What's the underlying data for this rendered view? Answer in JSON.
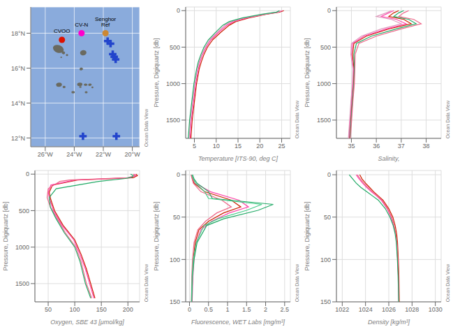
{
  "chart_data": [
    {
      "type": "map",
      "xlim": [
        -27,
        -19.5
      ],
      "ylim": [
        11.5,
        19.5
      ],
      "xticks": [
        {
          "value": -26,
          "label": "26°W"
        },
        {
          "value": -24,
          "label": "24°W"
        },
        {
          "value": -22,
          "label": "22°W"
        },
        {
          "value": -20,
          "label": "20°W"
        }
      ],
      "yticks": [
        {
          "value": 12,
          "label": "12°N"
        },
        {
          "value": 14,
          "label": "14°N"
        },
        {
          "value": 16,
          "label": "16°N"
        },
        {
          "value": 18,
          "label": "18°N"
        }
      ],
      "grid": true,
      "color": "#8aabdc",
      "annotations": [
        "Ocean Data View"
      ],
      "series": [
        {
          "type": "ellipse",
          "color": "#6a6a60",
          "x": [
            -25.1,
            -24.75,
            -24.5,
            -24.9,
            -25.05,
            -24.7,
            -23.62,
            -23.58,
            -23.22,
            -23.52,
            -23.38,
            -22.92,
            -22.75,
            -23.18,
            -24.08
          ],
          "y": [
            17.1,
            16.88,
            16.75,
            16.62,
            15.05,
            14.92,
            15.07,
            14.92,
            15.05,
            15.95,
            16.88,
            15.05,
            14.9,
            14.62,
            14.62
          ],
          "rx": [
            0.38,
            0.12,
            0.08,
            0.06,
            0.2,
            0.1,
            0.18,
            0.08,
            0.12,
            0.12,
            0.22,
            0.12,
            0.07,
            0.1,
            0.12
          ],
          "ry": [
            0.22,
            0.08,
            0.06,
            0.04,
            0.12,
            0.07,
            0.1,
            0.05,
            0.07,
            0.08,
            0.15,
            0.07,
            0.05,
            0.06,
            0.07
          ],
          "angle": [
            -20,
            -20,
            0,
            0,
            10,
            0,
            5,
            0,
            0,
            10,
            5,
            5,
            0,
            0,
            0
          ]
        },
        {
          "type": "scatter",
          "color": "#2244cc",
          "marker": "cross",
          "x": [
            -21.7,
            -21.5,
            -21.35,
            -21.25,
            -21.15,
            -23.4,
            -21.1
          ],
          "y": [
            17.55,
            17.4,
            16.8,
            16.65,
            16.5,
            12.1,
            12.1
          ]
        },
        {
          "type": "scatter",
          "name": "CVOO",
          "color": "#dd1100",
          "marker": "circle",
          "x": [
            -24.85
          ],
          "y": [
            17.62
          ]
        },
        {
          "type": "scatter",
          "name": "CV-N",
          "color": "#ff00cc",
          "marker": "circle",
          "x": [
            -23.5
          ],
          "y": [
            18.0
          ]
        },
        {
          "type": "scatter",
          "name": "Senghor Ref",
          "color": "#cc8833",
          "marker": "circle",
          "x": [
            -21.85
          ],
          "y": [
            18.0
          ]
        }
      ]
    },
    {
      "type": "line",
      "xlabel": "Temperature [ITS-90, deg C]",
      "ylabel": "Pressure, Digiquartz [db]",
      "xlim": [
        3,
        27
      ],
      "ylim": [
        1750,
        -50
      ],
      "xticks": [
        5,
        10,
        15,
        20,
        25
      ],
      "yticks": [
        0,
        500,
        1000,
        1500
      ],
      "grid": true,
      "annotations": [
        "Ocean Data View"
      ],
      "series": [
        {
          "color": "#cc2200",
          "y": [
            0,
            20,
            50,
            100,
            150,
            200,
            300,
            400,
            500,
            600,
            700,
            800,
            1000,
            1250,
            1500,
            1750
          ],
          "x": [
            25.5,
            24.5,
            21.5,
            17.5,
            14.5,
            13.0,
            11.0,
            9.2,
            8.0,
            7.2,
            6.6,
            6.1,
            5.5,
            5.0,
            4.5,
            4.2
          ]
        },
        {
          "color": "#ff44aa",
          "y": [
            0,
            20,
            50,
            100,
            150,
            200,
            300,
            400,
            500,
            600,
            700,
            800,
            1000,
            1250,
            1500,
            1750
          ],
          "x": [
            25.2,
            24.2,
            21.2,
            17.0,
            14.0,
            12.5,
            10.5,
            8.8,
            7.7,
            6.9,
            6.3,
            5.9,
            5.3,
            4.8,
            4.3,
            4.0
          ]
        },
        {
          "color": "#dd99bb",
          "y": [
            0,
            20,
            50,
            100,
            150,
            200,
            300,
            400,
            500,
            600,
            700,
            800,
            1000,
            1250,
            1500,
            1750
          ],
          "x": [
            25.0,
            24.0,
            21.0,
            16.5,
            13.5,
            12.0,
            10.2,
            8.5,
            7.5,
            6.7,
            6.1,
            5.7,
            5.1,
            4.6,
            4.1,
            3.8
          ]
        },
        {
          "color": "#22aa66",
          "y": [
            0,
            20,
            50,
            100,
            150,
            200,
            300,
            400,
            500,
            600,
            700,
            800,
            1000,
            1250,
            1500,
            1750
          ],
          "x": [
            24.5,
            23.8,
            20.5,
            16.0,
            13.0,
            11.5,
            9.8,
            8.2,
            7.2,
            6.5,
            5.9,
            5.5,
            4.9,
            4.4,
            3.9,
            3.6
          ]
        }
      ]
    },
    {
      "type": "line",
      "xlabel": "Salinity,",
      "ylabel": "Pressure, Digiquartz [db]",
      "xlim": [
        34.4,
        38.6
      ],
      "ylim": [
        1750,
        -50
      ],
      "xticks": [
        35,
        36,
        37,
        38
      ],
      "yticks": [
        0,
        500,
        1000,
        1500
      ],
      "grid": true,
      "annotations": [
        "Ocean Data View"
      ],
      "series": [
        {
          "color": "#cc2200",
          "y": [
            0,
            30,
            80,
            120,
            180,
            250,
            350,
            450,
            600,
            800,
            1000,
            1250,
            1500,
            1750
          ],
          "x": [
            36.9,
            36.7,
            36.5,
            37.1,
            37.4,
            36.5,
            35.6,
            35.1,
            35.05,
            35.1,
            35.08,
            35.02,
            34.97,
            34.92
          ]
        },
        {
          "color": "#ff44aa",
          "y": [
            0,
            30,
            80,
            120,
            180,
            250,
            350,
            450,
            600,
            800,
            1000,
            1250,
            1500,
            1750
          ],
          "x": [
            36.7,
            36.5,
            36.2,
            36.8,
            37.2,
            36.4,
            35.5,
            35.05,
            35.0,
            35.08,
            35.06,
            35.0,
            34.95,
            34.9
          ]
        },
        {
          "color": "#dd99bb",
          "y": [
            0,
            30,
            80,
            120,
            180,
            250,
            350,
            450,
            600,
            800,
            1000,
            1250,
            1500,
            1750
          ],
          "x": [
            36.6,
            36.4,
            36.0,
            36.6,
            37.0,
            36.2,
            35.4,
            35.0,
            34.98,
            35.06,
            35.04,
            34.98,
            34.93,
            34.88
          ]
        },
        {
          "color": "#22aa66",
          "y": [
            0,
            30,
            80,
            120,
            180,
            250,
            350,
            450,
            600,
            800,
            1000,
            1250,
            1500,
            1750
          ],
          "x": [
            37.1,
            36.9,
            36.7,
            37.3,
            37.6,
            36.8,
            35.8,
            35.2,
            35.1,
            35.12,
            35.1,
            35.04,
            34.99,
            34.94
          ]
        },
        {
          "color": "#ee6688",
          "y": [
            0,
            30,
            80,
            120,
            180,
            250,
            350,
            450,
            600,
            800,
            1000,
            1250,
            1500,
            1750
          ],
          "x": [
            37.3,
            37.1,
            36.9,
            37.5,
            37.8,
            37.0,
            36.0,
            35.3,
            35.15,
            35.14,
            35.12,
            35.06,
            35.01,
            34.96
          ]
        }
      ]
    },
    {
      "type": "line",
      "xlabel": "Oxygen, SBE 43 [μmol/kg]",
      "ylabel": "Pressure, Digiquartz [db]",
      "xlim": [
        25,
        222
      ],
      "ylim": [
        1750,
        -50
      ],
      "xticks": [
        50,
        100,
        150,
        200
      ],
      "yticks": [
        0,
        500,
        1000,
        1500
      ],
      "grid": true,
      "annotations": [
        "Ocean Data View"
      ],
      "series": [
        {
          "color": "#cc2200",
          "y": [
            0,
            20,
            50,
            80,
            150,
            250,
            350,
            500,
            700,
            900,
            1100,
            1300,
            1500,
            1700
          ],
          "x": [
            215,
            218,
            210,
            105,
            58,
            52,
            55,
            62,
            78,
            100,
            112,
            122,
            130,
            138
          ]
        },
        {
          "color": "#ff44aa",
          "y": [
            0,
            20,
            50,
            80,
            150,
            250,
            350,
            500,
            700,
            900,
            1100,
            1300,
            1500,
            1700
          ],
          "x": [
            212,
            215,
            205,
            100,
            55,
            50,
            53,
            60,
            76,
            98,
            110,
            120,
            128,
            136
          ]
        },
        {
          "color": "#ee6688",
          "y": [
            0,
            20,
            50,
            80,
            100,
            200,
            320,
            450,
            600,
            800,
            1000,
            1200,
            1500,
            1700
          ],
          "x": [
            210,
            213,
            200,
            90,
            72,
            50,
            48,
            54,
            66,
            82,
            102,
            112,
            122,
            132
          ]
        },
        {
          "color": "#22aa66",
          "y": [
            0,
            20,
            40,
            60,
            100,
            200,
            320,
            450,
            600,
            800,
            1000,
            1200,
            1500,
            1700
          ],
          "x": [
            205,
            210,
            208,
            195,
            145,
            65,
            52,
            54,
            64,
            80,
            100,
            110,
            120,
            130
          ]
        }
      ]
    },
    {
      "type": "line",
      "xlabel": "Fluorescence, WET Labs [mg/m³]",
      "ylabel": "Pressure, Digiquartz [db]",
      "xlim": [
        -0.1,
        2.65
      ],
      "ylim": [
        150,
        -5
      ],
      "xticks": [
        0,
        0.5,
        1,
        1.5,
        2,
        2.5
      ],
      "yticks": [
        0,
        50,
        100,
        150
      ],
      "grid": true,
      "annotations": [
        "Ocean Data View"
      ],
      "series": [
        {
          "color": "#cc2200",
          "y": [
            0,
            5,
            10,
            20,
            30,
            38,
            45,
            55,
            65,
            80,
            100,
            120,
            150
          ],
          "x": [
            0.05,
            0.08,
            0.12,
            0.4,
            1.1,
            1.35,
            0.9,
            0.5,
            0.25,
            0.15,
            0.1,
            0.08,
            0.06
          ]
        },
        {
          "color": "#ff44aa",
          "y": [
            0,
            5,
            10,
            20,
            30,
            38,
            45,
            55,
            65,
            80,
            100,
            120,
            150
          ],
          "x": [
            0.06,
            0.1,
            0.15,
            0.55,
            1.3,
            1.55,
            1.05,
            0.58,
            0.3,
            0.18,
            0.12,
            0.09,
            0.07
          ]
        },
        {
          "color": "#ee6688",
          "y": [
            0,
            5,
            10,
            20,
            30,
            38,
            45,
            55,
            65,
            80,
            100,
            120,
            150
          ],
          "x": [
            0.04,
            0.07,
            0.1,
            0.3,
            0.85,
            1.1,
            0.72,
            0.42,
            0.22,
            0.12,
            0.08,
            0.06,
            0.05
          ]
        },
        {
          "color": "#22aa66",
          "y": [
            0,
            5,
            10,
            20,
            28,
            35,
            42,
            52,
            60,
            80,
            100,
            120,
            150
          ],
          "x": [
            0.08,
            0.12,
            0.2,
            0.5,
            0.6,
            2.2,
            1.8,
            0.9,
            0.45,
            0.2,
            0.12,
            0.08,
            0.06
          ]
        },
        {
          "color": "#44cc88",
          "y": [
            0,
            5,
            10,
            20,
            28,
            35,
            42,
            52,
            60,
            80,
            100,
            120,
            150
          ],
          "x": [
            0.06,
            0.1,
            0.16,
            0.4,
            0.5,
            1.9,
            1.5,
            0.75,
            0.38,
            0.18,
            0.1,
            0.07,
            0.05
          ]
        }
      ]
    },
    {
      "type": "line",
      "xlabel": "Density [kg/m³]",
      "ylabel": "Pressure, Digiquartz [db]",
      "xlim": [
        1021.5,
        1030.5
      ],
      "ylim": [
        150,
        -5
      ],
      "xticks": [
        1022,
        1024,
        1026,
        1028,
        1030
      ],
      "yticks": [
        0,
        50,
        100,
        150
      ],
      "grid": true,
      "annotations": [
        "Ocean Data View"
      ],
      "series": [
        {
          "color": "#cc2200",
          "y": [
            0,
            5,
            10,
            15,
            20,
            25,
            30,
            40,
            50,
            60,
            70,
            80,
            100,
            120,
            150
          ],
          "x": [
            1023.5,
            1023.7,
            1024.0,
            1024.35,
            1024.7,
            1025.1,
            1025.5,
            1026.0,
            1026.35,
            1026.55,
            1026.68,
            1026.75,
            1026.82,
            1026.87,
            1026.9
          ]
        },
        {
          "color": "#ff44aa",
          "y": [
            0,
            5,
            10,
            15,
            20,
            25,
            30,
            40,
            50,
            60,
            70,
            80,
            100,
            120,
            150
          ],
          "x": [
            1023.2,
            1023.45,
            1023.75,
            1024.1,
            1024.5,
            1024.95,
            1025.35,
            1025.85,
            1026.2,
            1026.42,
            1026.58,
            1026.68,
            1026.76,
            1026.82,
            1026.86
          ]
        },
        {
          "color": "#ee6688",
          "y": [
            0,
            5,
            10,
            15,
            20,
            25,
            30,
            40,
            50,
            60,
            70,
            80,
            100,
            120,
            150
          ],
          "x": [
            1023.3,
            1023.55,
            1023.85,
            1024.2,
            1024.6,
            1025.02,
            1025.42,
            1025.9,
            1026.25,
            1026.46,
            1026.6,
            1026.7,
            1026.78,
            1026.83,
            1026.87
          ]
        },
        {
          "color": "#22aa66",
          "y": [
            0,
            5,
            10,
            15,
            20,
            25,
            30,
            40,
            50,
            60,
            70,
            80,
            100,
            120,
            150
          ],
          "x": [
            1022.6,
            1022.9,
            1023.2,
            1023.6,
            1024.1,
            1024.6,
            1025.1,
            1025.7,
            1026.1,
            1026.38,
            1026.55,
            1026.65,
            1026.74,
            1026.8,
            1026.85
          ]
        }
      ]
    }
  ]
}
